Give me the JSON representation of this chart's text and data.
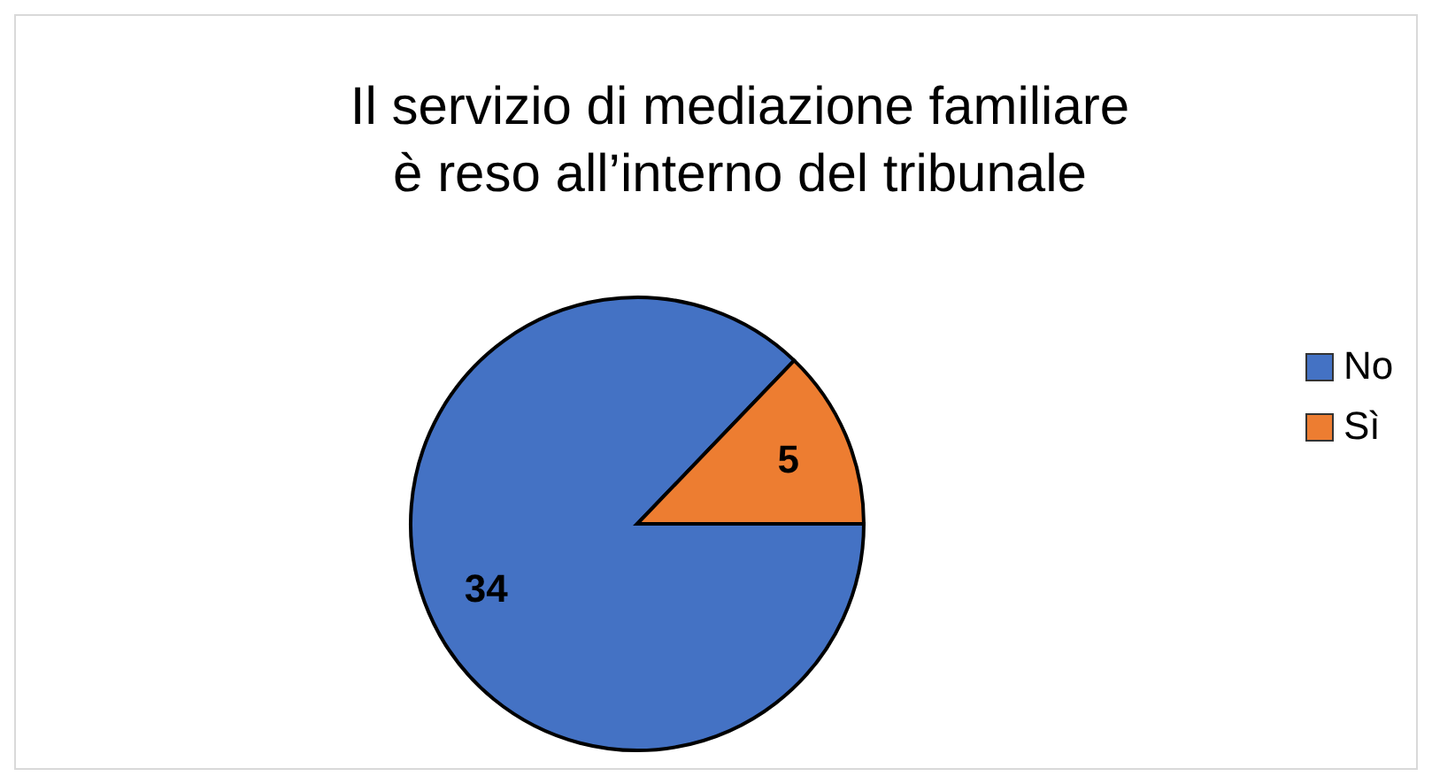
{
  "chart_data": {
    "type": "pie",
    "title": "Il servizio di mediazione familiare è reso all’interno del tribunale",
    "categories": [
      "No",
      "Sì"
    ],
    "values": [
      34,
      5
    ],
    "colors": [
      "#4472c4",
      "#ed7d31"
    ],
    "data_labels": true,
    "legend": "right"
  }
}
